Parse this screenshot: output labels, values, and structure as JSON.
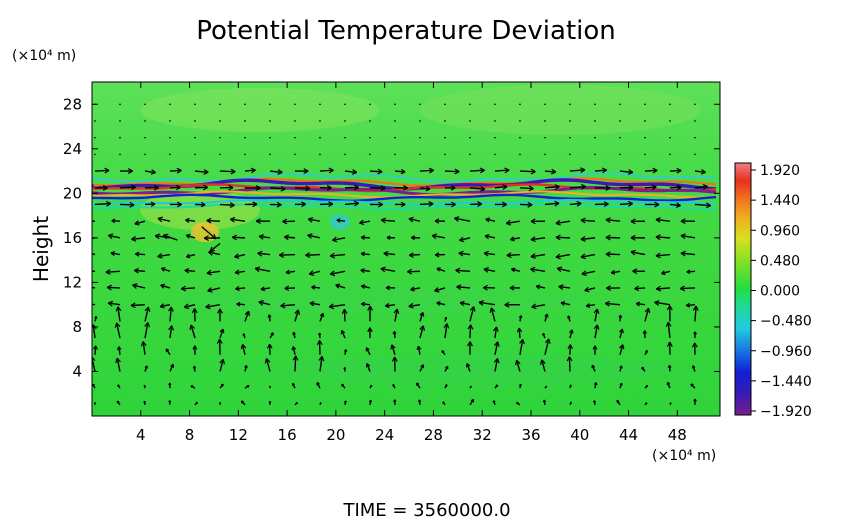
{
  "chart_data": {
    "type": "heatmap",
    "title": "Potential Temperature Deviation",
    "xlabel": "",
    "ylabel": "Height",
    "x_unit": "(×10⁴ m)",
    "y_unit": "(×10⁴ m)",
    "xlim": [
      0,
      51.5
    ],
    "ylim": [
      0,
      30
    ],
    "x_ticks": [
      4,
      8,
      12,
      16,
      20,
      24,
      28,
      32,
      36,
      40,
      44,
      48
    ],
    "y_ticks": [
      4,
      8,
      12,
      16,
      20,
      24,
      28
    ],
    "colorbar": {
      "ticks": [
        "1.920",
        "1.440",
        "0.960",
        "0.480",
        "0.000",
        "−0.480",
        "−0.960",
        "−1.440",
        "−1.920"
      ],
      "range": [
        -1.92,
        1.92
      ],
      "colors": [
        "#7a1f8c",
        "#3a1ab0",
        "#1020d8",
        "#1a7ae0",
        "#22c8e0",
        "#20d8a0",
        "#22dd44",
        "#7ce024",
        "#d8e020",
        "#f0b020",
        "#f07020",
        "#e83020",
        "#f08080"
      ]
    },
    "background_value": 0.1,
    "bands": [
      {
        "height": 20.8,
        "description_value": -1.6
      },
      {
        "height": 20.2,
        "description_value": 1.5
      },
      {
        "height": 19.6,
        "description_value": -0.9
      }
    ],
    "wind_vectors": "quiver overlay"
  },
  "footer": {
    "time_label": "TIME  =  3560000.0"
  }
}
